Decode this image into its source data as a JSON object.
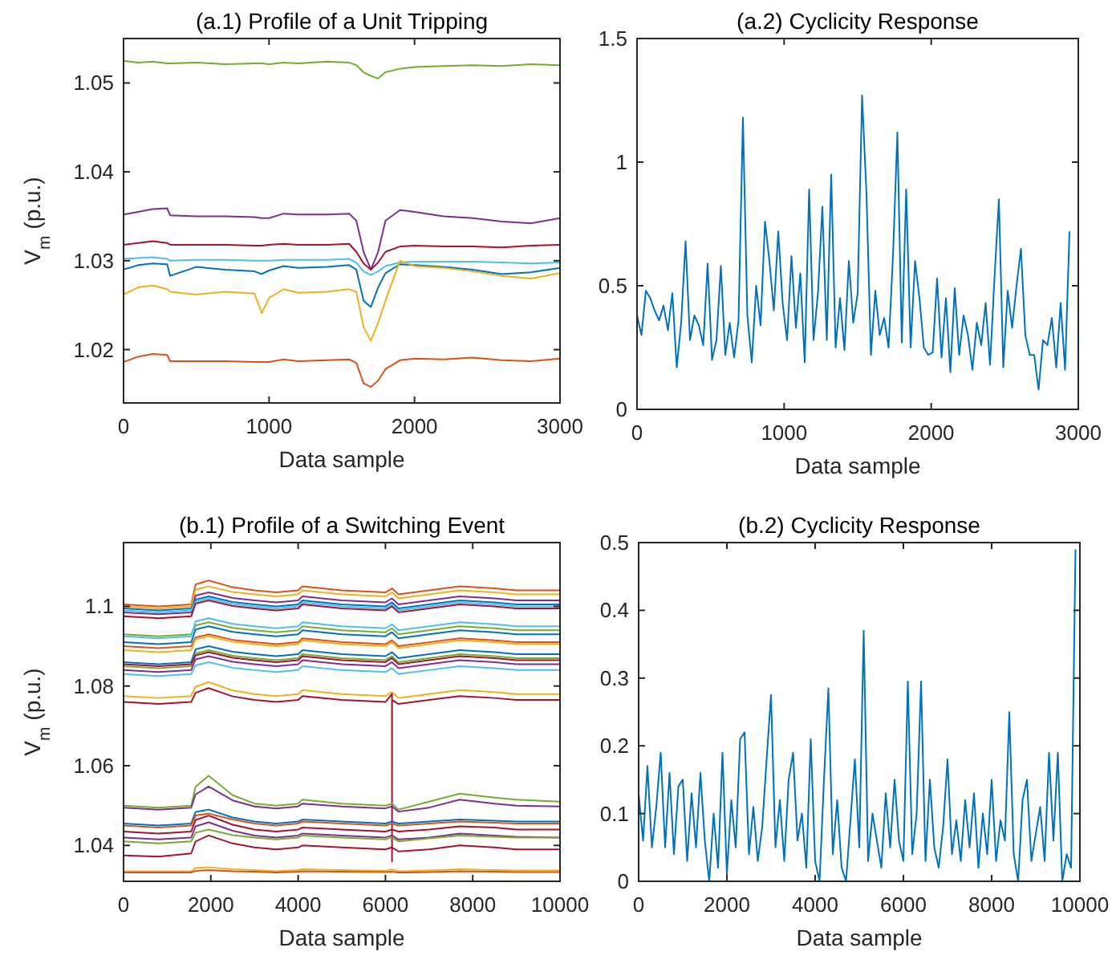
{
  "chart_data": [
    {
      "type": "line",
      "title": "(a.1) Profile of a Unit Tripping",
      "xlabel": "Data sample",
      "ylabel": "V$_{m}$ (p.u.)",
      "xlim": [
        0,
        3000
      ],
      "xticks": [
        0,
        1000,
        2000,
        3000
      ],
      "ylim": [
        1.014,
        1.055
      ],
      "yticks": [
        1.02,
        1.03,
        1.04,
        1.05
      ],
      "grid": false,
      "x": [
        0,
        100,
        200,
        300,
        320,
        500,
        700,
        900,
        950,
        1000,
        1100,
        1200,
        1400,
        1550,
        1600,
        1650,
        1700,
        1750,
        1800,
        1900,
        2000,
        2200,
        2400,
        2600,
        2800,
        3000
      ],
      "series": [
        {
          "color": "#77ac30",
          "values": [
            1.0525,
            1.0523,
            1.0524,
            1.0522,
            1.0522,
            1.0523,
            1.0521,
            1.0522,
            1.0522,
            1.0521,
            1.0523,
            1.0522,
            1.0524,
            1.0523,
            1.052,
            1.0512,
            1.0508,
            1.0505,
            1.0512,
            1.0516,
            1.0518,
            1.0519,
            1.052,
            1.0519,
            1.0521,
            1.052
          ]
        },
        {
          "color": "#7e2f8e",
          "values": [
            1.0352,
            1.0355,
            1.0358,
            1.0359,
            1.0351,
            1.035,
            1.035,
            1.0349,
            1.0348,
            1.0348,
            1.0353,
            1.0352,
            1.0352,
            1.0353,
            1.0345,
            1.031,
            1.029,
            1.031,
            1.0345,
            1.0357,
            1.0355,
            1.035,
            1.0348,
            1.0344,
            1.0342,
            1.0348
          ]
        },
        {
          "color": "#a2142f",
          "values": [
            1.0318,
            1.032,
            1.0322,
            1.032,
            1.0318,
            1.0318,
            1.0318,
            1.0317,
            1.0317,
            1.0318,
            1.0319,
            1.0318,
            1.0318,
            1.0319,
            1.031,
            1.0297,
            1.029,
            1.0298,
            1.031,
            1.0316,
            1.0317,
            1.0316,
            1.0316,
            1.0315,
            1.0317,
            1.0318
          ]
        },
        {
          "color": "#4dbeee",
          "values": [
            1.0302,
            1.0303,
            1.0304,
            1.0302,
            1.03,
            1.0301,
            1.0301,
            1.03,
            1.03,
            1.03,
            1.0301,
            1.0301,
            1.0301,
            1.0302,
            1.0298,
            1.0288,
            1.0284,
            1.0288,
            1.0294,
            1.0298,
            1.0299,
            1.0299,
            1.0299,
            1.0298,
            1.0297,
            1.0298
          ]
        },
        {
          "color": "#0072bd",
          "values": [
            1.029,
            1.0295,
            1.0297,
            1.0296,
            1.0283,
            1.0293,
            1.029,
            1.0288,
            1.0285,
            1.0289,
            1.0294,
            1.0292,
            1.0293,
            1.0295,
            1.029,
            1.0255,
            1.0248,
            1.027,
            1.0286,
            1.0296,
            1.0295,
            1.0293,
            1.029,
            1.0285,
            1.0287,
            1.0292
          ]
        },
        {
          "color": "#edb120",
          "values": [
            1.0262,
            1.027,
            1.0272,
            1.0268,
            1.0265,
            1.0262,
            1.0265,
            1.0263,
            1.0241,
            1.0258,
            1.0268,
            1.0264,
            1.0265,
            1.0268,
            1.0265,
            1.0225,
            1.021,
            1.023,
            1.0255,
            1.03,
            1.0294,
            1.0292,
            1.0288,
            1.0283,
            1.028,
            1.0286
          ]
        },
        {
          "color": "#d95319",
          "values": [
            1.0186,
            1.0192,
            1.0195,
            1.0194,
            1.0187,
            1.0187,
            1.0187,
            1.0186,
            1.0186,
            1.0186,
            1.0189,
            1.0187,
            1.0188,
            1.0189,
            1.0185,
            1.0162,
            1.0158,
            1.0165,
            1.0178,
            1.0188,
            1.019,
            1.0189,
            1.0191,
            1.0188,
            1.0187,
            1.019
          ]
        }
      ]
    },
    {
      "type": "line",
      "title": "(a.2) Cyclicity Response",
      "xlabel": "Data sample",
      "xlim": [
        0,
        3000
      ],
      "xticks": [
        0,
        1000,
        2000,
        3000
      ],
      "ylim": [
        0,
        1.5
      ],
      "yticks": [
        0,
        0.5,
        1,
        1.5
      ],
      "grid": false,
      "x": [
        0,
        30,
        60,
        90,
        120,
        150,
        180,
        210,
        240,
        270,
        300,
        330,
        360,
        390,
        420,
        450,
        480,
        510,
        540,
        570,
        600,
        630,
        660,
        690,
        720,
        750,
        780,
        810,
        840,
        870,
        900,
        930,
        960,
        990,
        1020,
        1050,
        1080,
        1110,
        1140,
        1170,
        1200,
        1230,
        1260,
        1290,
        1320,
        1350,
        1380,
        1410,
        1440,
        1470,
        1500,
        1530,
        1560,
        1590,
        1620,
        1650,
        1680,
        1710,
        1740,
        1770,
        1800,
        1830,
        1860,
        1890,
        1920,
        1950,
        1980,
        2010,
        2040,
        2070,
        2100,
        2130,
        2160,
        2190,
        2220,
        2250,
        2280,
        2310,
        2340,
        2370,
        2400,
        2430,
        2460,
        2490,
        2520,
        2550,
        2580,
        2610,
        2640,
        2670,
        2700,
        2730,
        2760,
        2790,
        2820,
        2850,
        2880,
        2910,
        2940
      ],
      "series": [
        {
          "color": "#0072bd",
          "values": [
            0.38,
            0.3,
            0.48,
            0.45,
            0.4,
            0.36,
            0.42,
            0.32,
            0.47,
            0.17,
            0.35,
            0.68,
            0.28,
            0.38,
            0.34,
            0.26,
            0.59,
            0.2,
            0.28,
            0.58,
            0.22,
            0.35,
            0.21,
            0.36,
            1.18,
            0.38,
            0.19,
            0.5,
            0.34,
            0.76,
            0.6,
            0.4,
            0.72,
            0.43,
            0.28,
            0.62,
            0.33,
            0.55,
            0.19,
            0.89,
            0.28,
            0.47,
            0.82,
            0.28,
            0.95,
            0.25,
            0.45,
            0.24,
            0.6,
            0.35,
            0.47,
            1.27,
            0.87,
            0.22,
            0.48,
            0.3,
            0.37,
            0.25,
            0.62,
            1.12,
            0.27,
            0.89,
            0.25,
            0.6,
            0.45,
            0.25,
            0.22,
            0.23,
            0.53,
            0.21,
            0.45,
            0.15,
            0.49,
            0.22,
            0.38,
            0.3,
            0.16,
            0.35,
            0.26,
            0.43,
            0.18,
            0.53,
            0.85,
            0.17,
            0.48,
            0.33,
            0.5,
            0.65,
            0.3,
            0.22,
            0.22,
            0.08,
            0.28,
            0.26,
            0.37,
            0.17,
            0.43,
            0.16,
            0.72
          ]
        }
      ]
    },
    {
      "type": "line",
      "title": "(b.1) Profile of a Switching Event",
      "xlabel": "Data sample",
      "ylabel": "V$_{m}$ (p.u.)",
      "xlim": [
        0,
        10000
      ],
      "xticks": [
        0,
        2000,
        4000,
        6000,
        8000,
        10000
      ],
      "ylim": [
        1.031,
        1.116
      ],
      "yticks": [
        1.04,
        1.06,
        1.08,
        1.1
      ],
      "grid": false,
      "x": [
        0,
        800,
        1550,
        1650,
        1950,
        2500,
        3000,
        3500,
        4000,
        4100,
        5000,
        6000,
        6150,
        6300,
        7000,
        7700,
        8500,
        9000,
        10000
      ],
      "series": [
        {
          "color": "#d95319",
          "values": [
            1.1005,
            1.1,
            1.1005,
            1.1055,
            1.1065,
            1.1048,
            1.104,
            1.1035,
            1.104,
            1.105,
            1.104,
            1.1035,
            1.1045,
            1.103,
            1.104,
            1.105,
            1.1045,
            1.104,
            1.104
          ]
        },
        {
          "color": "#edb120",
          "values": [
            1.1,
            1.0995,
            1.1,
            1.1042,
            1.105,
            1.1036,
            1.103,
            1.1025,
            1.103,
            1.104,
            1.103,
            1.1025,
            1.1035,
            1.102,
            1.103,
            1.104,
            1.1035,
            1.103,
            1.103
          ]
        },
        {
          "color": "#7e2f8e",
          "values": [
            1.0985,
            1.098,
            1.0985,
            1.1027,
            1.1035,
            1.1021,
            1.1015,
            1.101,
            1.1015,
            1.1025,
            1.1015,
            1.101,
            1.102,
            1.1005,
            1.1015,
            1.1025,
            1.102,
            1.1015,
            1.1015
          ]
        },
        {
          "color": "#0072bd",
          "values": [
            1.0995,
            1.099,
            1.0995,
            1.1017,
            1.1025,
            1.1011,
            1.1005,
            1.1,
            1.1005,
            1.1015,
            1.1005,
            1.1,
            1.101,
            1.0995,
            1.1005,
            1.1015,
            1.101,
            1.1005,
            1.1005
          ]
        },
        {
          "color": "#4dbeee",
          "values": [
            1.099,
            1.0985,
            1.099,
            1.1012,
            1.102,
            1.1006,
            1.1,
            1.0995,
            1.1,
            1.101,
            1.1,
            1.0995,
            1.1005,
            1.099,
            1.1,
            1.101,
            1.1005,
            1.1,
            1.1
          ]
        },
        {
          "color": "#a2142f",
          "values": [
            1.0975,
            1.097,
            1.0975,
            1.1007,
            1.1015,
            1.1001,
            1.0995,
            1.099,
            1.0995,
            1.1005,
            1.0995,
            1.099,
            1.1,
            1.0985,
            1.0995,
            1.1005,
            1.1,
            1.0995,
            1.0995
          ]
        },
        {
          "color": "#77ac30",
          "values": [
            1.093,
            1.0925,
            1.093,
            1.0952,
            1.096,
            1.0946,
            1.094,
            1.0935,
            1.094,
            1.095,
            1.094,
            1.0935,
            1.0945,
            1.093,
            1.094,
            1.095,
            1.0945,
            1.094,
            1.094
          ]
        },
        {
          "color": "#4dbeee",
          "values": [
            1.0925,
            1.092,
            1.0925,
            1.0962,
            1.097,
            1.0956,
            1.095,
            1.0945,
            1.095,
            1.096,
            1.095,
            1.0945,
            1.0955,
            1.094,
            1.095,
            1.096,
            1.0955,
            1.095,
            1.095
          ]
        },
        {
          "color": "#0072bd",
          "values": [
            1.091,
            1.0905,
            1.091,
            1.0942,
            1.095,
            1.0936,
            1.093,
            1.0925,
            1.093,
            1.094,
            1.093,
            1.0925,
            1.0935,
            1.092,
            1.093,
            1.094,
            1.0935,
            1.093,
            1.093
          ]
        },
        {
          "color": "#d95319",
          "values": [
            1.09,
            1.0895,
            1.09,
            1.0922,
            1.093,
            1.0916,
            1.091,
            1.0905,
            1.091,
            1.092,
            1.091,
            1.0905,
            1.0915,
            1.09,
            1.091,
            1.092,
            1.0915,
            1.091,
            1.091
          ]
        },
        {
          "color": "#edb120",
          "values": [
            1.089,
            1.0885,
            1.089,
            1.0917,
            1.0925,
            1.0911,
            1.0905,
            1.09,
            1.0905,
            1.0915,
            1.0905,
            1.09,
            1.091,
            1.0895,
            1.0905,
            1.0915,
            1.091,
            1.0905,
            1.0905
          ]
        },
        {
          "color": "#0072bd",
          "values": [
            1.086,
            1.0855,
            1.086,
            1.0892,
            1.09,
            1.0886,
            1.088,
            1.0875,
            1.088,
            1.089,
            1.088,
            1.0875,
            1.0885,
            1.087,
            1.088,
            1.089,
            1.0885,
            1.088,
            1.088
          ]
        },
        {
          "color": "#77ac30",
          "values": [
            1.085,
            1.0845,
            1.085,
            1.0882,
            1.089,
            1.0876,
            1.087,
            1.0865,
            1.087,
            1.088,
            1.087,
            1.0865,
            1.0875,
            1.086,
            1.087,
            1.088,
            1.0875,
            1.087,
            1.087
          ]
        },
        {
          "color": "#a2142f",
          "values": [
            1.0855,
            1.085,
            1.0855,
            1.0877,
            1.0885,
            1.0871,
            1.0865,
            1.086,
            1.0865,
            1.0875,
            1.0865,
            1.086,
            1.087,
            1.0855,
            1.0865,
            1.0875,
            1.087,
            1.0865,
            1.0865
          ]
        },
        {
          "color": "#7e2f8e",
          "values": [
            1.084,
            1.0835,
            1.084,
            1.0867,
            1.0875,
            1.0861,
            1.0855,
            1.085,
            1.0855,
            1.0865,
            1.0855,
            1.085,
            1.086,
            1.0845,
            1.0855,
            1.0865,
            1.086,
            1.0855,
            1.0855
          ]
        },
        {
          "color": "#4dbeee",
          "values": [
            1.083,
            1.0825,
            1.083,
            1.0852,
            1.086,
            1.0846,
            1.084,
            1.0835,
            1.084,
            1.085,
            1.084,
            1.0835,
            1.0845,
            1.083,
            1.084,
            1.085,
            1.0845,
            1.084,
            1.084
          ]
        },
        {
          "color": "#edb120",
          "values": [
            1.0775,
            1.077,
            1.0775,
            1.0798,
            1.081,
            1.0789,
            1.078,
            1.0775,
            1.078,
            1.079,
            1.078,
            1.0775,
            1.0785,
            1.077,
            1.078,
            1.079,
            1.0785,
            1.078,
            1.078
          ]
        },
        {
          "color": "#a2142f",
          "x": [
            0,
            800,
            1550,
            1650,
            1950,
            2500,
            3000,
            3500,
            4000,
            4100,
            5000,
            6000,
            6150,
            6151,
            6152,
            6300,
            7000,
            7700,
            8500,
            9000,
            10000
          ],
          "values": [
            1.076,
            1.0755,
            1.076,
            1.0783,
            1.0795,
            1.0774,
            1.0765,
            1.076,
            1.0765,
            1.0775,
            1.0765,
            1.076,
            1.078,
            1.036,
            1.0765,
            1.0755,
            1.0765,
            1.0775,
            1.077,
            1.0765,
            1.0765
          ]
        },
        {
          "color": "#77ac30",
          "values": [
            1.05,
            1.0495,
            1.05,
            1.0547,
            1.0575,
            1.0526,
            1.0505,
            1.05,
            1.0505,
            1.0515,
            1.0505,
            1.05,
            1.0505,
            1.049,
            1.051,
            1.053,
            1.052,
            1.0515,
            1.051
          ]
        },
        {
          "color": "#7e2f8e",
          "values": [
            1.0495,
            1.049,
            1.0495,
            1.0528,
            1.0548,
            1.0513,
            1.0498,
            1.0493,
            1.0498,
            1.0505,
            1.0498,
            1.0493,
            1.0498,
            1.0485,
            1.0495,
            1.0515,
            1.0505,
            1.05,
            1.0498
          ]
        },
        {
          "color": "#0072bd",
          "values": [
            1.0455,
            1.045,
            1.0455,
            1.0484,
            1.049,
            1.047,
            1.046,
            1.0455,
            1.046,
            1.0465,
            1.046,
            1.0455,
            1.046,
            1.0455,
            1.046,
            1.0465,
            1.0462,
            1.046,
            1.046
          ]
        },
        {
          "color": "#d95319",
          "values": [
            1.045,
            1.0445,
            1.045,
            1.0475,
            1.048,
            1.0465,
            1.0455,
            1.045,
            1.0455,
            1.046,
            1.0455,
            1.045,
            1.0455,
            1.045,
            1.0455,
            1.046,
            1.0457,
            1.0455,
            1.0455
          ]
        },
        {
          "color": "#a2142f",
          "values": [
            1.0435,
            1.043,
            1.0435,
            1.0464,
            1.0475,
            1.0452,
            1.044,
            1.0435,
            1.044,
            1.0445,
            1.044,
            1.0435,
            1.044,
            1.0435,
            1.044,
            1.0448,
            1.0445,
            1.044,
            1.044
          ]
        },
        {
          "color": "#7e2f8e",
          "values": [
            1.042,
            1.0415,
            1.042,
            1.0448,
            1.0458,
            1.0437,
            1.0425,
            1.042,
            1.0425,
            1.043,
            1.0425,
            1.042,
            1.0425,
            1.0415,
            1.042,
            1.043,
            1.0425,
            1.0422,
            1.042
          ]
        },
        {
          "color": "#77ac30",
          "values": [
            1.041,
            1.0405,
            1.041,
            1.0432,
            1.044,
            1.0426,
            1.042,
            1.0415,
            1.042,
            1.0425,
            1.042,
            1.0415,
            1.042,
            1.041,
            1.0418,
            1.0425,
            1.0422,
            1.042,
            1.042
          ]
        },
        {
          "color": "#a2142f",
          "values": [
            1.0375,
            1.0372,
            1.038,
            1.041,
            1.0425,
            1.0405,
            1.0395,
            1.039,
            1.0395,
            1.04,
            1.0395,
            1.039,
            1.0395,
            1.0385,
            1.039,
            1.04,
            1.0395,
            1.039,
            1.039
          ]
        },
        {
          "color": "#edb120",
          "values": [
            1.0335,
            1.0335,
            1.0335,
            1.0343,
            1.0345,
            1.034,
            1.0338,
            1.0335,
            1.0338,
            1.034,
            1.0338,
            1.0336,
            1.034,
            1.0335,
            1.0337,
            1.034,
            1.0338,
            1.0337,
            1.0337
          ]
        },
        {
          "color": "#d95319",
          "values": [
            1.0332,
            1.0332,
            1.0332,
            1.0336,
            1.0338,
            1.0335,
            1.0334,
            1.0332,
            1.0334,
            1.0335,
            1.0334,
            1.0333,
            1.0334,
            1.0332,
            1.0333,
            1.0335,
            1.0334,
            1.0333,
            1.0333
          ]
        }
      ]
    },
    {
      "type": "line",
      "title": "(b.2) Cyclicity Response",
      "xlabel": "Data sample",
      "xlim": [
        0,
        10000
      ],
      "xticks": [
        0,
        2000,
        4000,
        6000,
        8000,
        10000
      ],
      "ylim": [
        0,
        0.5
      ],
      "yticks": [
        0,
        0.1,
        0.2,
        0.3,
        0.4,
        0.5
      ],
      "grid": false,
      "x": [
        0,
        100,
        200,
        300,
        400,
        500,
        600,
        700,
        800,
        900,
        1000,
        1100,
        1200,
        1300,
        1400,
        1500,
        1600,
        1700,
        1800,
        1900,
        2000,
        2100,
        2200,
        2300,
        2400,
        2500,
        2600,
        2700,
        2800,
        2900,
        3000,
        3100,
        3200,
        3300,
        3400,
        3500,
        3600,
        3700,
        3800,
        3900,
        4000,
        4100,
        4200,
        4300,
        4400,
        4500,
        4600,
        4700,
        4800,
        4900,
        5000,
        5100,
        5200,
        5300,
        5400,
        5500,
        5600,
        5700,
        5800,
        5900,
        6000,
        6100,
        6200,
        6300,
        6400,
        6500,
        6600,
        6700,
        6800,
        6900,
        7000,
        7100,
        7200,
        7300,
        7400,
        7500,
        7600,
        7700,
        7800,
        7900,
        8000,
        8100,
        8200,
        8300,
        8400,
        8500,
        8600,
        8700,
        8800,
        8900,
        9000,
        9100,
        9200,
        9300,
        9400,
        9500,
        9600,
        9700,
        9800,
        9900
      ],
      "series": [
        {
          "color": "#0072bd",
          "values": [
            0.13,
            0.06,
            0.17,
            0.05,
            0.11,
            0.19,
            0.05,
            0.16,
            0.04,
            0.14,
            0.15,
            0.03,
            0.13,
            0.05,
            0.16,
            0.06,
            0,
            0.1,
            0.02,
            0.19,
            0.01,
            0.12,
            0.05,
            0.21,
            0.22,
            0.04,
            0.11,
            0.03,
            0.08,
            0.18,
            0.275,
            0.05,
            0.12,
            0.03,
            0.15,
            0.19,
            0.06,
            0.1,
            0.02,
            0.21,
            0.03,
            0,
            0.15,
            0.285,
            0.04,
            0.12,
            0.02,
            0,
            0.09,
            0.18,
            0.05,
            0.37,
            0.03,
            0.1,
            0.06,
            0.02,
            0.13,
            0.05,
            0.15,
            0.06,
            0.03,
            0.295,
            0.04,
            0.1,
            0.295,
            0.03,
            0.15,
            0.05,
            0.02,
            0.08,
            0.18,
            0.04,
            0.09,
            0.03,
            0.12,
            0.05,
            0.13,
            0.02,
            0.1,
            0.04,
            0.15,
            0.03,
            0.09,
            0.06,
            0.25,
            0.04,
            0,
            0.12,
            0.15,
            0.03,
            0.07,
            0.11,
            0.03,
            0.19,
            0.06,
            0.19,
            0,
            0.04,
            0.02,
            0.49
          ]
        }
      ]
    }
  ]
}
